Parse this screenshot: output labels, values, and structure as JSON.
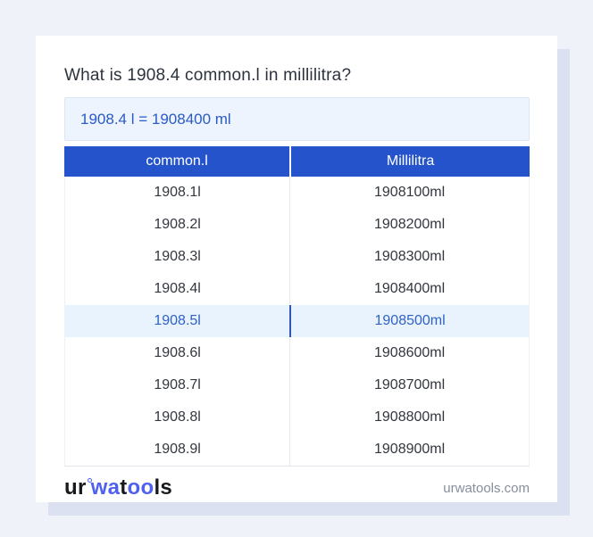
{
  "title": "What is 1908.4 common.l in millilitra?",
  "result_box": {
    "text": "1908.4 l = 1908400 ml"
  },
  "table": {
    "headers": [
      "common.l",
      "Millilitra"
    ],
    "rows": [
      {
        "l": "1908.1l",
        "ml": "1908100ml",
        "highlight": false
      },
      {
        "l": "1908.2l",
        "ml": "1908200ml",
        "highlight": false
      },
      {
        "l": "1908.3l",
        "ml": "1908300ml",
        "highlight": false
      },
      {
        "l": "1908.4l",
        "ml": "1908400ml",
        "highlight": false
      },
      {
        "l": "1908.5l",
        "ml": "1908500ml",
        "highlight": true
      },
      {
        "l": "1908.6l",
        "ml": "1908600ml",
        "highlight": false
      },
      {
        "l": "1908.7l",
        "ml": "1908700ml",
        "highlight": false
      },
      {
        "l": "1908.8l",
        "ml": "1908800ml",
        "highlight": false
      },
      {
        "l": "1908.9l",
        "ml": "1908900ml",
        "highlight": false
      }
    ]
  },
  "footer": {
    "logo": {
      "part1": "ur",
      "part2": "wa",
      "part3": "t",
      "part4": "oo",
      "part5": "ls"
    },
    "domain": "urwatools.com"
  },
  "colors": {
    "page_background": "#f0f2f9",
    "card_shadow": "#dbe1f0",
    "table_header_bg": "#2453cb",
    "result_box_bg": "#edf4fd",
    "result_text": "#2a5ac6",
    "highlight_row_bg": "#e9f3fd",
    "highlight_text": "#2f62c8",
    "highlight_divider": "#2b57be",
    "logo_accent": "#5060ef",
    "body_text": "#32373e",
    "domain_text": "#878f9e"
  }
}
